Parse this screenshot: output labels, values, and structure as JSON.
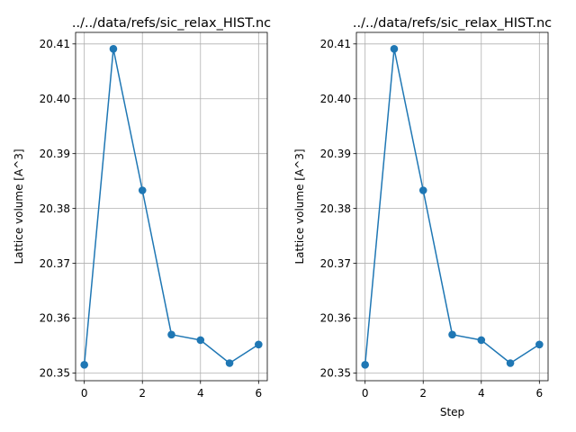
{
  "chart_data": [
    {
      "type": "line",
      "title": "../../data/refs/sic_relax_HIST.nc",
      "xlabel": "",
      "ylabel": "Lattice volume [A^3]",
      "x": [
        0,
        1,
        2,
        3,
        4,
        5,
        6
      ],
      "series": [
        {
          "values": [
            20.3515,
            20.4091,
            20.3833,
            20.357,
            20.356,
            20.3518,
            20.3552
          ]
        }
      ],
      "xlim": [
        -0.3,
        6.3
      ],
      "ylim": [
        20.3486,
        20.4121
      ],
      "xticks": [
        0,
        2,
        4,
        6
      ],
      "xtick_labels": [
        "0",
        "2",
        "4",
        "6"
      ],
      "yticks": [
        20.35,
        20.36,
        20.37,
        20.38,
        20.39,
        20.4,
        20.41
      ],
      "ytick_labels": [
        "20.35",
        "20.36",
        "20.37",
        "20.38",
        "20.39",
        "20.40",
        "20.41"
      ],
      "grid": true,
      "marker": "circle",
      "color": "#1f77b4"
    },
    {
      "type": "line",
      "title": "../../data/refs/sic_relax_HIST.nc",
      "xlabel": "Step",
      "ylabel": "Lattice volume [A^3]",
      "x": [
        0,
        1,
        2,
        3,
        4,
        5,
        6
      ],
      "series": [
        {
          "values": [
            20.3515,
            20.4091,
            20.3833,
            20.357,
            20.356,
            20.3518,
            20.3552
          ]
        }
      ],
      "xlim": [
        -0.3,
        6.3
      ],
      "ylim": [
        20.3486,
        20.4121
      ],
      "xticks": [
        0,
        2,
        4,
        6
      ],
      "xtick_labels": [
        "0",
        "2",
        "4",
        "6"
      ],
      "yticks": [
        20.35,
        20.36,
        20.37,
        20.38,
        20.39,
        20.4,
        20.41
      ],
      "ytick_labels": [
        "20.35",
        "20.36",
        "20.37",
        "20.38",
        "20.39",
        "20.40",
        "20.41"
      ],
      "grid": true,
      "marker": "circle",
      "color": "#1f77b4"
    }
  ]
}
